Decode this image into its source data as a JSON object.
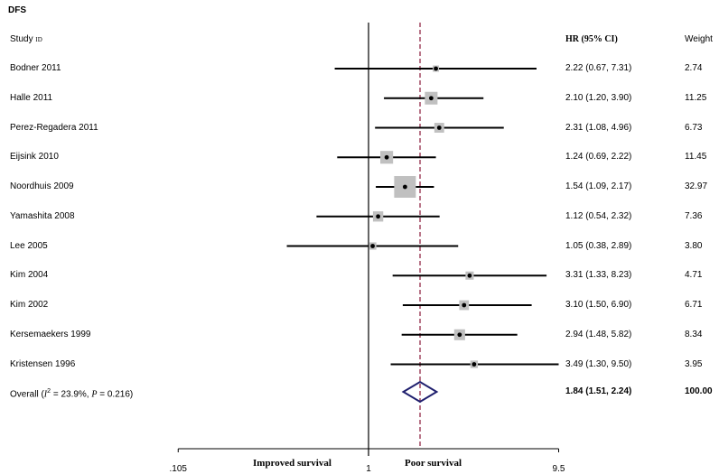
{
  "chart_data": {
    "type": "forest",
    "title": "DFS",
    "columns": {
      "study": "Study",
      "study_suffix": "ID",
      "hr": "HR (95% CI)",
      "weight": "Weight"
    },
    "scale": "log",
    "null_line": 1,
    "pooled_line": 1.84,
    "x_ticks": [
      {
        "value": 0.105,
        "label": ".105"
      },
      {
        "value": 1,
        "label": "1"
      },
      {
        "value": 9.5,
        "label": "9.5"
      }
    ],
    "xlabel_left": "Improved survival",
    "xlabel_right": "Poor survival",
    "studies": [
      {
        "name": "Bodner 2011",
        "hr": 2.22,
        "lo": 0.67,
        "hi": 7.31,
        "ci_text": "2.22 (0.67, 7.31)",
        "weight": 2.74,
        "weight_text": "2.74"
      },
      {
        "name": "Halle 2011",
        "hr": 2.1,
        "lo": 1.2,
        "hi": 3.9,
        "ci_text": "2.10 (1.20, 3.90)",
        "weight": 11.25,
        "weight_text": "11.25"
      },
      {
        "name": "Perez-Regadera 2011",
        "hr": 2.31,
        "lo": 1.08,
        "hi": 4.96,
        "ci_text": "2.31 (1.08, 4.96)",
        "weight": 6.73,
        "weight_text": "6.73"
      },
      {
        "name": "Eijsink 2010",
        "hr": 1.24,
        "lo": 0.69,
        "hi": 2.22,
        "ci_text": "1.24 (0.69, 2.22)",
        "weight": 11.45,
        "weight_text": "11.45"
      },
      {
        "name": "Noordhuis 2009",
        "hr": 1.54,
        "lo": 1.09,
        "hi": 2.17,
        "ci_text": "1.54 (1.09, 2.17)",
        "weight": 32.97,
        "weight_text": "32.97"
      },
      {
        "name": "Yamashita 2008",
        "hr": 1.12,
        "lo": 0.54,
        "hi": 2.32,
        "ci_text": "1.12 (0.54, 2.32)",
        "weight": 7.36,
        "weight_text": "7.36"
      },
      {
        "name": "Lee  2005",
        "hr": 1.05,
        "lo": 0.38,
        "hi": 2.89,
        "ci_text": "1.05 (0.38, 2.89)",
        "weight": 3.8,
        "weight_text": "3.80"
      },
      {
        "name": "Kim  2004",
        "hr": 3.31,
        "lo": 1.33,
        "hi": 8.23,
        "ci_text": "3.31 (1.33, 8.23)",
        "weight": 4.71,
        "weight_text": "4.71"
      },
      {
        "name": "Kim  2002",
        "hr": 3.1,
        "lo": 1.5,
        "hi": 6.9,
        "ci_text": "3.10 (1.50, 6.90)",
        "weight": 6.71,
        "weight_text": "6.71"
      },
      {
        "name": "Kersemaekers 1999",
        "hr": 2.94,
        "lo": 1.48,
        "hi": 5.82,
        "ci_text": "2.94 (1.48, 5.82)",
        "weight": 8.34,
        "weight_text": "8.34"
      },
      {
        "name": "Kristensen 1996",
        "hr": 3.49,
        "lo": 1.3,
        "hi": 9.5,
        "ci_text": "3.49 (1.30, 9.50)",
        "weight": 3.95,
        "weight_text": "3.95"
      }
    ],
    "overall": {
      "label_prefix": "Overall  (",
      "label_i2": "I",
      "label_i2_sup": "2",
      "label_middle": " = 23.9%,  ",
      "label_p": "P",
      "label_suffix": " = 0.216)",
      "hr": 1.84,
      "lo": 1.51,
      "hi": 2.24,
      "ci_text": "1.84 (1.51, 2.24)",
      "weight_text": "100.00"
    },
    "colors": {
      "box": "#c0c0c0",
      "diamond": "#1f1f6e",
      "pooled_line": "#8b1a3a",
      "line": "#000000"
    }
  }
}
